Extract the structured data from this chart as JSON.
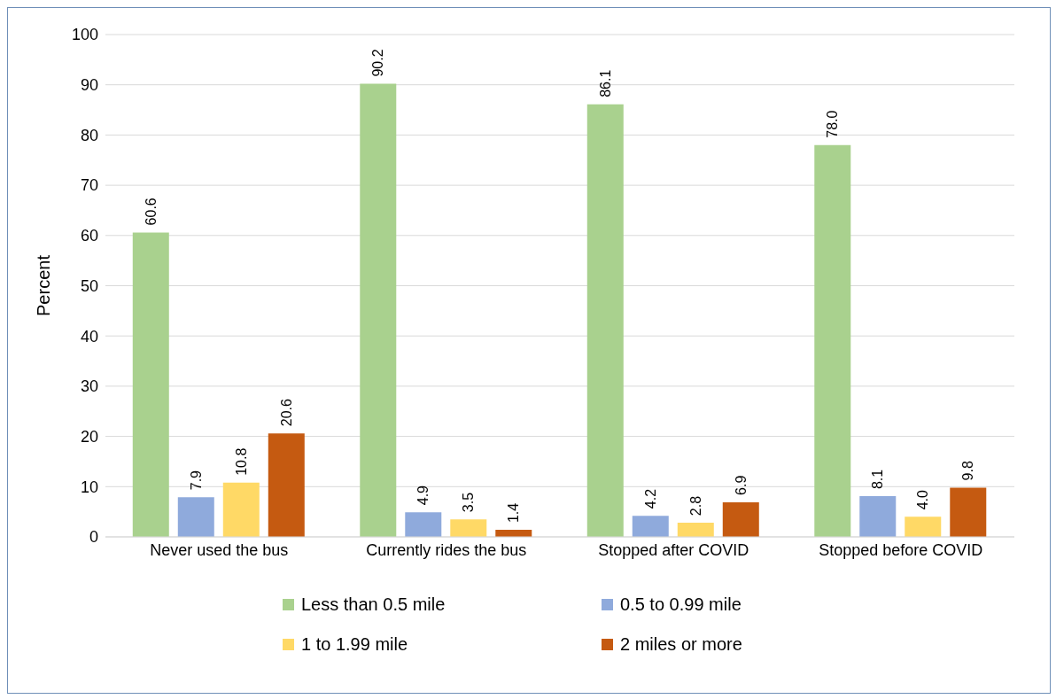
{
  "chart_data": {
    "type": "bar",
    "ylabel": "Percent",
    "categories": [
      "Never used the bus",
      "Currently rides the bus",
      "Stopped after COVID",
      "Stopped before COVID"
    ],
    "series": [
      {
        "name": "Less than 0.5 mile",
        "color": "#a9d18e",
        "values": [
          60.6,
          90.2,
          86.1,
          78.0
        ],
        "value_labels": [
          "60.6",
          "90.2",
          "86.1",
          "78.0"
        ]
      },
      {
        "name": "0.5 to 0.99 mile",
        "color": "#8faadc",
        "values": [
          7.9,
          4.9,
          4.2,
          8.1
        ],
        "value_labels": [
          "7.9",
          "4.9",
          "4.2",
          "8.1"
        ]
      },
      {
        "name": "1 to 1.99 mile",
        "color": "#ffd966",
        "values": [
          10.8,
          3.5,
          2.8,
          4.0
        ],
        "value_labels": [
          "10.8",
          "3.5",
          "2.8",
          "4.0"
        ]
      },
      {
        "name": "2 miles or more",
        "color": "#c55a11",
        "values": [
          20.6,
          1.4,
          6.9,
          9.8
        ],
        "value_labels": [
          "20.6",
          "1.4",
          "6.9",
          "9.8"
        ]
      }
    ],
    "ylim": [
      0,
      100
    ],
    "yticks": [
      0,
      10,
      20,
      30,
      40,
      50,
      60,
      70,
      80,
      90,
      100
    ],
    "grid": "y",
    "legend": "bottom"
  }
}
